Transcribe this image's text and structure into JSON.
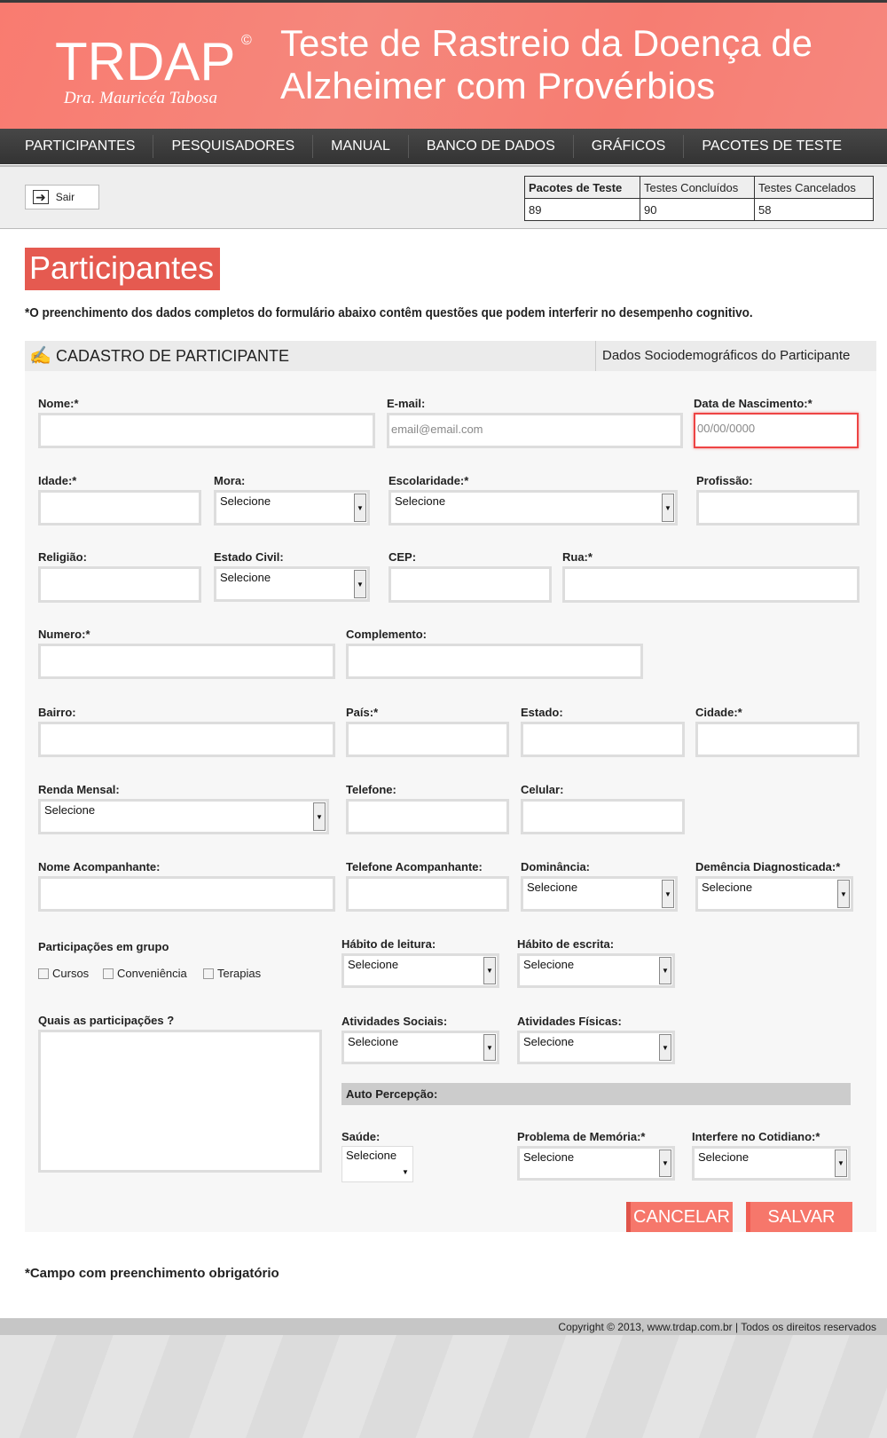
{
  "header": {
    "logo": "TRDAP",
    "logo_mark": "©",
    "logo_subtitle": "Dra. Mauricéa Tabosa",
    "site_title": "Teste de Rastreio da Doença de Alzheimer com Provérbios",
    "brand_color": "#f97b70"
  },
  "nav": [
    "PARTICIPANTES",
    "PESQUISADORES",
    "MANUAL",
    "BANCO DE DADOS",
    "GRÁFICOS",
    "PACOTES DE TESTE"
  ],
  "toolbar": {
    "logout_label": "Sair",
    "stats": {
      "headers": [
        "Pacotes de Teste",
        "Testes Concluídos",
        "Testes Cancelados"
      ],
      "values": [
        "89",
        "90",
        "58"
      ]
    }
  },
  "page": {
    "title": "Participantes",
    "notice": "*O preenchimento dos dados completos do formulário abaixo contêm questões que podem interferir no desempenho cognitivo.",
    "section_title": "CADASTRO DE PARTICIPANTE",
    "section_subtitle": "Dados Sociodemográficos do Participante"
  },
  "form": {
    "fields": [
      {
        "label": "Nome:*",
        "type": "text",
        "value": ""
      },
      {
        "label": "E-mail:",
        "type": "text",
        "placeholder": "email@email.com"
      },
      {
        "label": "Data de Nascimento:*",
        "type": "text",
        "placeholder": "00/00/0000"
      },
      {
        "label": "Idade:*",
        "type": "text",
        "value": ""
      },
      {
        "label": "Mora:",
        "type": "select",
        "value": "Selecione"
      },
      {
        "label": "Escolaridade:*",
        "type": "select",
        "value": "Selecione"
      },
      {
        "label": "Profissão:",
        "type": "text",
        "value": ""
      },
      {
        "label": "Religião:",
        "type": "text",
        "value": ""
      },
      {
        "label": "Estado Civil:",
        "type": "select",
        "value": "Selecione"
      },
      {
        "label": "CEP:",
        "type": "text",
        "value": ""
      },
      {
        "label": "Rua:*",
        "type": "text",
        "value": ""
      },
      {
        "label": "Numero:*",
        "type": "text",
        "value": ""
      },
      {
        "label": "Complemento:",
        "type": "text",
        "value": ""
      },
      {
        "label": "Bairro:",
        "type": "text",
        "value": ""
      },
      {
        "label": "País:*",
        "type": "text",
        "value": ""
      },
      {
        "label": "Estado:",
        "type": "text",
        "value": ""
      },
      {
        "label": "Cidade:*",
        "type": "text",
        "value": ""
      },
      {
        "label": "Renda Mensal:",
        "type": "select",
        "value": "Selecione"
      },
      {
        "label": "Telefone:",
        "type": "text",
        "value": ""
      },
      {
        "label": "Celular:",
        "type": "text",
        "value": ""
      },
      {
        "label": "Nome Acompanhante:",
        "type": "text",
        "value": ""
      },
      {
        "label": "Telefone Acompanhante:",
        "type": "text",
        "value": ""
      },
      {
        "label": "Dominância:",
        "type": "select",
        "value": "Selecione"
      },
      {
        "label": "Demência Diagnosticada:*",
        "type": "select",
        "value": "Selecione"
      },
      {
        "label": "Hábito de leitura:",
        "type": "select",
        "value": "Selecione"
      },
      {
        "label": "Hábito de escrita:",
        "type": "select",
        "value": "Selecione"
      },
      {
        "label": "Quais as participações ?",
        "type": "textarea",
        "value": ""
      },
      {
        "label": "Atividades Sociais:",
        "type": "select",
        "value": "Selecione"
      },
      {
        "label": "Atividades Físicas:",
        "type": "select",
        "value": "Selecione"
      },
      {
        "label": "Saúde:",
        "type": "select",
        "value": "Selecione"
      },
      {
        "label": "Problema de Memória:*",
        "type": "select",
        "value": "Selecione"
      },
      {
        "label": "Interfere no Cotidiano:*",
        "type": "select",
        "value": "Selecione"
      }
    ],
    "group_label": "Participações em grupo",
    "checkboxes": [
      {
        "label": "Cursos",
        "checked": false
      },
      {
        "label": "Conveniência",
        "checked": false
      },
      {
        "label": "Terapias",
        "checked": false
      }
    ],
    "auto_percepcao": "Auto Percepção:",
    "cancel_label": "CANCELAR",
    "save_label": "SALVAR"
  },
  "footnote": "*Campo com preenchimento obrigatório",
  "footer": "Copyright © 2013, www.trdap.com.br | Todos os direitos reservados"
}
